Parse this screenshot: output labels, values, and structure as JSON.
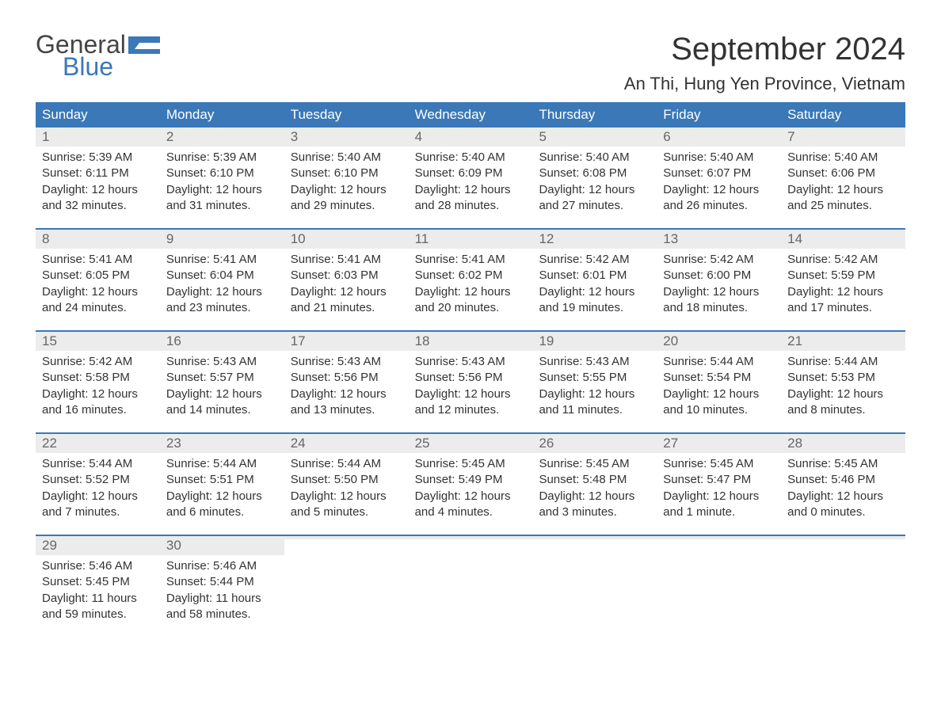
{
  "logo": {
    "line1": "General",
    "line2": "Blue",
    "flag_color": "#3a78b8",
    "text_color_top": "#444444",
    "text_color_bottom": "#3a78b8"
  },
  "title": "September 2024",
  "location": "An Thi, Hung Yen Province, Vietnam",
  "colors": {
    "header_bg": "#3a78b8",
    "header_text": "#ffffff",
    "daynum_bg": "#ececec",
    "daynum_text": "#666666",
    "body_text": "#333333",
    "week_border": "#3a78b8",
    "background": "#ffffff"
  },
  "weekdays": [
    "Sunday",
    "Monday",
    "Tuesday",
    "Wednesday",
    "Thursday",
    "Friday",
    "Saturday"
  ],
  "weeks": [
    [
      {
        "n": "1",
        "sunrise": "Sunrise: 5:39 AM",
        "sunset": "Sunset: 6:11 PM",
        "dl1": "Daylight: 12 hours",
        "dl2": "and 32 minutes."
      },
      {
        "n": "2",
        "sunrise": "Sunrise: 5:39 AM",
        "sunset": "Sunset: 6:10 PM",
        "dl1": "Daylight: 12 hours",
        "dl2": "and 31 minutes."
      },
      {
        "n": "3",
        "sunrise": "Sunrise: 5:40 AM",
        "sunset": "Sunset: 6:10 PM",
        "dl1": "Daylight: 12 hours",
        "dl2": "and 29 minutes."
      },
      {
        "n": "4",
        "sunrise": "Sunrise: 5:40 AM",
        "sunset": "Sunset: 6:09 PM",
        "dl1": "Daylight: 12 hours",
        "dl2": "and 28 minutes."
      },
      {
        "n": "5",
        "sunrise": "Sunrise: 5:40 AM",
        "sunset": "Sunset: 6:08 PM",
        "dl1": "Daylight: 12 hours",
        "dl2": "and 27 minutes."
      },
      {
        "n": "6",
        "sunrise": "Sunrise: 5:40 AM",
        "sunset": "Sunset: 6:07 PM",
        "dl1": "Daylight: 12 hours",
        "dl2": "and 26 minutes."
      },
      {
        "n": "7",
        "sunrise": "Sunrise: 5:40 AM",
        "sunset": "Sunset: 6:06 PM",
        "dl1": "Daylight: 12 hours",
        "dl2": "and 25 minutes."
      }
    ],
    [
      {
        "n": "8",
        "sunrise": "Sunrise: 5:41 AM",
        "sunset": "Sunset: 6:05 PM",
        "dl1": "Daylight: 12 hours",
        "dl2": "and 24 minutes."
      },
      {
        "n": "9",
        "sunrise": "Sunrise: 5:41 AM",
        "sunset": "Sunset: 6:04 PM",
        "dl1": "Daylight: 12 hours",
        "dl2": "and 23 minutes."
      },
      {
        "n": "10",
        "sunrise": "Sunrise: 5:41 AM",
        "sunset": "Sunset: 6:03 PM",
        "dl1": "Daylight: 12 hours",
        "dl2": "and 21 minutes."
      },
      {
        "n": "11",
        "sunrise": "Sunrise: 5:41 AM",
        "sunset": "Sunset: 6:02 PM",
        "dl1": "Daylight: 12 hours",
        "dl2": "and 20 minutes."
      },
      {
        "n": "12",
        "sunrise": "Sunrise: 5:42 AM",
        "sunset": "Sunset: 6:01 PM",
        "dl1": "Daylight: 12 hours",
        "dl2": "and 19 minutes."
      },
      {
        "n": "13",
        "sunrise": "Sunrise: 5:42 AM",
        "sunset": "Sunset: 6:00 PM",
        "dl1": "Daylight: 12 hours",
        "dl2": "and 18 minutes."
      },
      {
        "n": "14",
        "sunrise": "Sunrise: 5:42 AM",
        "sunset": "Sunset: 5:59 PM",
        "dl1": "Daylight: 12 hours",
        "dl2": "and 17 minutes."
      }
    ],
    [
      {
        "n": "15",
        "sunrise": "Sunrise: 5:42 AM",
        "sunset": "Sunset: 5:58 PM",
        "dl1": "Daylight: 12 hours",
        "dl2": "and 16 minutes."
      },
      {
        "n": "16",
        "sunrise": "Sunrise: 5:43 AM",
        "sunset": "Sunset: 5:57 PM",
        "dl1": "Daylight: 12 hours",
        "dl2": "and 14 minutes."
      },
      {
        "n": "17",
        "sunrise": "Sunrise: 5:43 AM",
        "sunset": "Sunset: 5:56 PM",
        "dl1": "Daylight: 12 hours",
        "dl2": "and 13 minutes."
      },
      {
        "n": "18",
        "sunrise": "Sunrise: 5:43 AM",
        "sunset": "Sunset: 5:56 PM",
        "dl1": "Daylight: 12 hours",
        "dl2": "and 12 minutes."
      },
      {
        "n": "19",
        "sunrise": "Sunrise: 5:43 AM",
        "sunset": "Sunset: 5:55 PM",
        "dl1": "Daylight: 12 hours",
        "dl2": "and 11 minutes."
      },
      {
        "n": "20",
        "sunrise": "Sunrise: 5:44 AM",
        "sunset": "Sunset: 5:54 PM",
        "dl1": "Daylight: 12 hours",
        "dl2": "and 10 minutes."
      },
      {
        "n": "21",
        "sunrise": "Sunrise: 5:44 AM",
        "sunset": "Sunset: 5:53 PM",
        "dl1": "Daylight: 12 hours",
        "dl2": "and 8 minutes."
      }
    ],
    [
      {
        "n": "22",
        "sunrise": "Sunrise: 5:44 AM",
        "sunset": "Sunset: 5:52 PM",
        "dl1": "Daylight: 12 hours",
        "dl2": "and 7 minutes."
      },
      {
        "n": "23",
        "sunrise": "Sunrise: 5:44 AM",
        "sunset": "Sunset: 5:51 PM",
        "dl1": "Daylight: 12 hours",
        "dl2": "and 6 minutes."
      },
      {
        "n": "24",
        "sunrise": "Sunrise: 5:44 AM",
        "sunset": "Sunset: 5:50 PM",
        "dl1": "Daylight: 12 hours",
        "dl2": "and 5 minutes."
      },
      {
        "n": "25",
        "sunrise": "Sunrise: 5:45 AM",
        "sunset": "Sunset: 5:49 PM",
        "dl1": "Daylight: 12 hours",
        "dl2": "and 4 minutes."
      },
      {
        "n": "26",
        "sunrise": "Sunrise: 5:45 AM",
        "sunset": "Sunset: 5:48 PM",
        "dl1": "Daylight: 12 hours",
        "dl2": "and 3 minutes."
      },
      {
        "n": "27",
        "sunrise": "Sunrise: 5:45 AM",
        "sunset": "Sunset: 5:47 PM",
        "dl1": "Daylight: 12 hours",
        "dl2": "and 1 minute."
      },
      {
        "n": "28",
        "sunrise": "Sunrise: 5:45 AM",
        "sunset": "Sunset: 5:46 PM",
        "dl1": "Daylight: 12 hours",
        "dl2": "and 0 minutes."
      }
    ],
    [
      {
        "n": "29",
        "sunrise": "Sunrise: 5:46 AM",
        "sunset": "Sunset: 5:45 PM",
        "dl1": "Daylight: 11 hours",
        "dl2": "and 59 minutes."
      },
      {
        "n": "30",
        "sunrise": "Sunrise: 5:46 AM",
        "sunset": "Sunset: 5:44 PM",
        "dl1": "Daylight: 11 hours",
        "dl2": "and 58 minutes."
      },
      {
        "n": "",
        "sunrise": "",
        "sunset": "",
        "dl1": "",
        "dl2": ""
      },
      {
        "n": "",
        "sunrise": "",
        "sunset": "",
        "dl1": "",
        "dl2": ""
      },
      {
        "n": "",
        "sunrise": "",
        "sunset": "",
        "dl1": "",
        "dl2": ""
      },
      {
        "n": "",
        "sunrise": "",
        "sunset": "",
        "dl1": "",
        "dl2": ""
      },
      {
        "n": "",
        "sunrise": "",
        "sunset": "",
        "dl1": "",
        "dl2": ""
      }
    ]
  ]
}
